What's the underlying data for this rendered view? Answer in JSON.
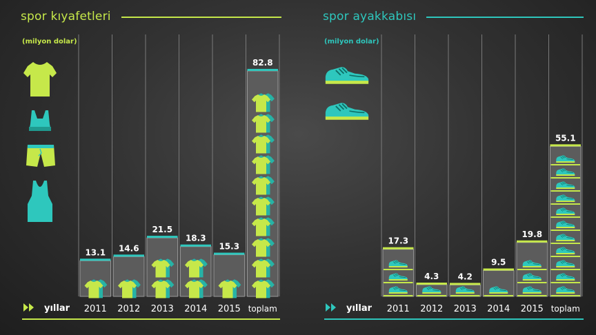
{
  "colors": {
    "apparel": "#c6e84a",
    "footwear": "#2ec7bd",
    "teal": "#27b3a6"
  },
  "labels": {
    "years_word": "yıllar"
  },
  "chart_data": [
    {
      "type": "bar",
      "title": "spor kıyafetleri",
      "unit": "(milyon dolar)",
      "categories": [
        "2011",
        "2012",
        "2013",
        "2014",
        "2015",
        "toplam"
      ],
      "values": [
        13.1,
        14.6,
        21.5,
        18.3,
        15.3,
        82.8
      ],
      "value_labels": [
        "13.1",
        "14.6",
        "21.5",
        "18.3",
        "15.3",
        "82.8"
      ],
      "icons": [
        "tshirt-icon",
        "sports-bra-icon",
        "shorts-icon",
        "tank-top-icon"
      ]
    },
    {
      "type": "bar",
      "title": "spor ayakkabısı",
      "unit": "(milyon dolar)",
      "categories": [
        "2011",
        "2012",
        "2013",
        "2014",
        "2015",
        "toplam"
      ],
      "values": [
        17.3,
        4.3,
        4.2,
        9.5,
        19.8,
        55.1
      ],
      "value_labels": [
        "17.3",
        "4.3",
        "4.2",
        "9.5",
        "19.8",
        "55.1"
      ],
      "icons": [
        "sneaker-icon",
        "sneaker-icon"
      ]
    }
  ]
}
